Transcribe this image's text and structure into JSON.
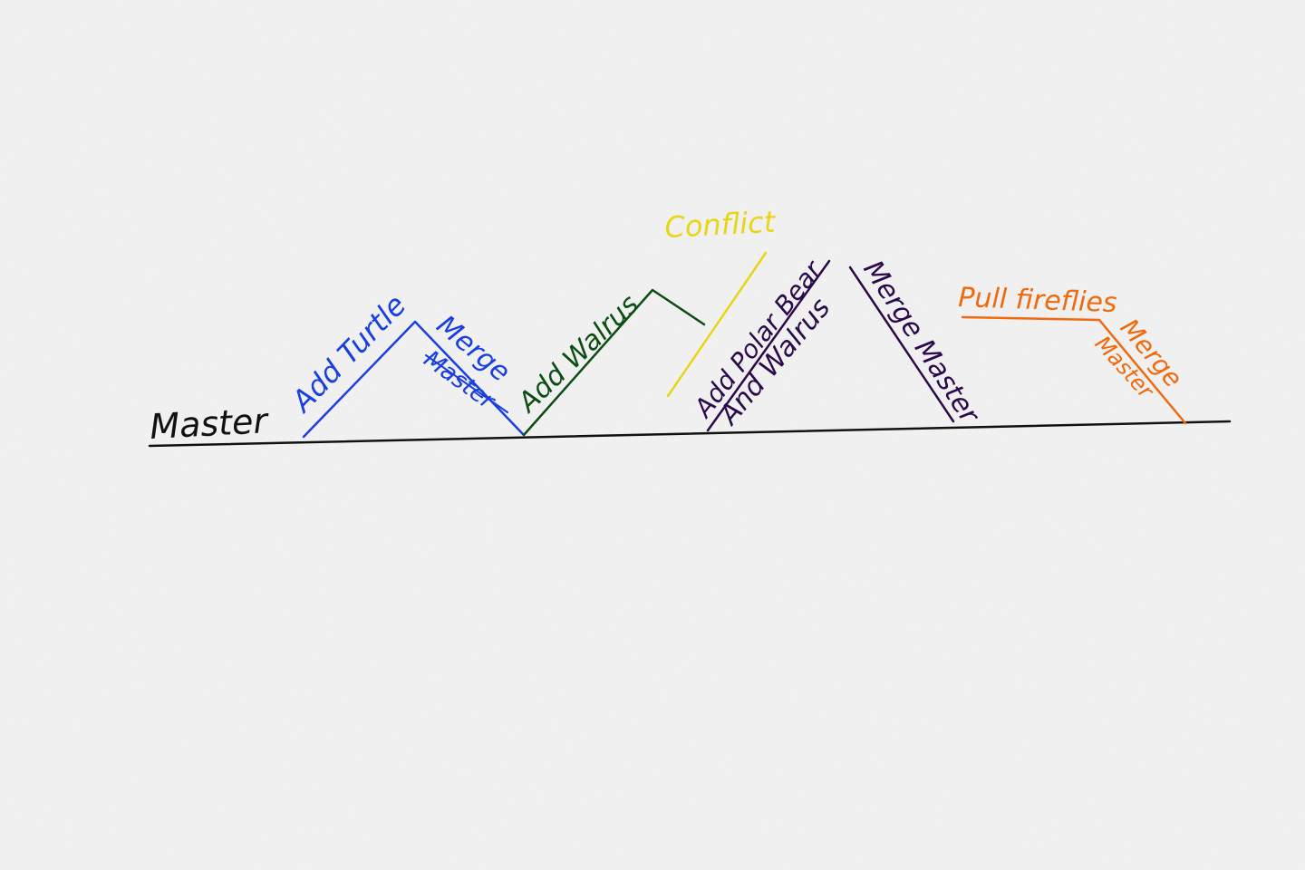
{
  "colors": {
    "paper": "#efefef",
    "master": "#111111",
    "turtle": "#1a3fe0",
    "walrus": "#0e4d12",
    "conflict": "#e9d517",
    "polar": "#2a0a4a",
    "fireflies": "#f06a0d"
  },
  "labels": {
    "master": "Master",
    "add_turtle": "Add Turtle",
    "merge_1": "Merge",
    "master_1": "Master",
    "add_walrus": "Add Walrus",
    "conflict": "Conflict",
    "add_polar_bear": "Add Polar Bear",
    "and_walrus": "And Walrus",
    "merge_master": "Merge Master",
    "pull_fireflies": "Pull fireflies",
    "merge_2": "Merge",
    "master_2": "Master"
  }
}
